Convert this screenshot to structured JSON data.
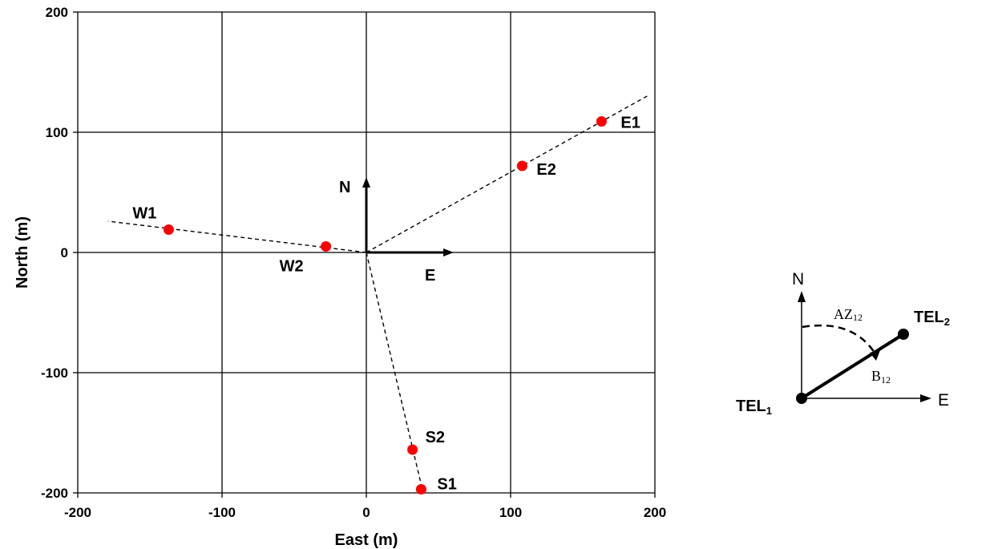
{
  "chart_data": {
    "type": "scatter",
    "xlabel": "East (m)",
    "ylabel": "North (m)",
    "xlim": [
      -200,
      200
    ],
    "ylim": [
      -200,
      200
    ],
    "xticks": [
      "-200",
      "-100",
      "0",
      "100",
      "200"
    ],
    "yticks": [
      "-200",
      "-100",
      "0",
      "100",
      "200"
    ],
    "grid": true,
    "points": [
      {
        "label": "E1",
        "x": 163,
        "y": 109
      },
      {
        "label": "E2",
        "x": 108,
        "y": 72
      },
      {
        "label": "W1",
        "x": -137,
        "y": 19
      },
      {
        "label": "W2",
        "x": -28,
        "y": 5
      },
      {
        "label": "S2",
        "x": 32,
        "y": -164
      },
      {
        "label": "S1",
        "x": 38,
        "y": -197
      }
    ],
    "baselines": [
      {
        "from": [
          0,
          0
        ],
        "to": [
          196,
          131
        ]
      },
      {
        "from": [
          0,
          0
        ],
        "to": [
          -179,
          26
        ]
      },
      {
        "from": [
          0,
          0
        ],
        "to": [
          39,
          -198
        ]
      }
    ],
    "axis_arrows": {
      "north_label": "N",
      "east_label": "E"
    },
    "point_color": "#ff0000"
  },
  "inset": {
    "north_label": "N",
    "east_label": "E",
    "azimuth_label": "AZ",
    "azimuth_sub": "12",
    "baseline_label": "B",
    "baseline_sub": "12",
    "tel1_label": "TEL",
    "tel1_sub": "1",
    "tel2_label": "TEL",
    "tel2_sub": "2"
  }
}
